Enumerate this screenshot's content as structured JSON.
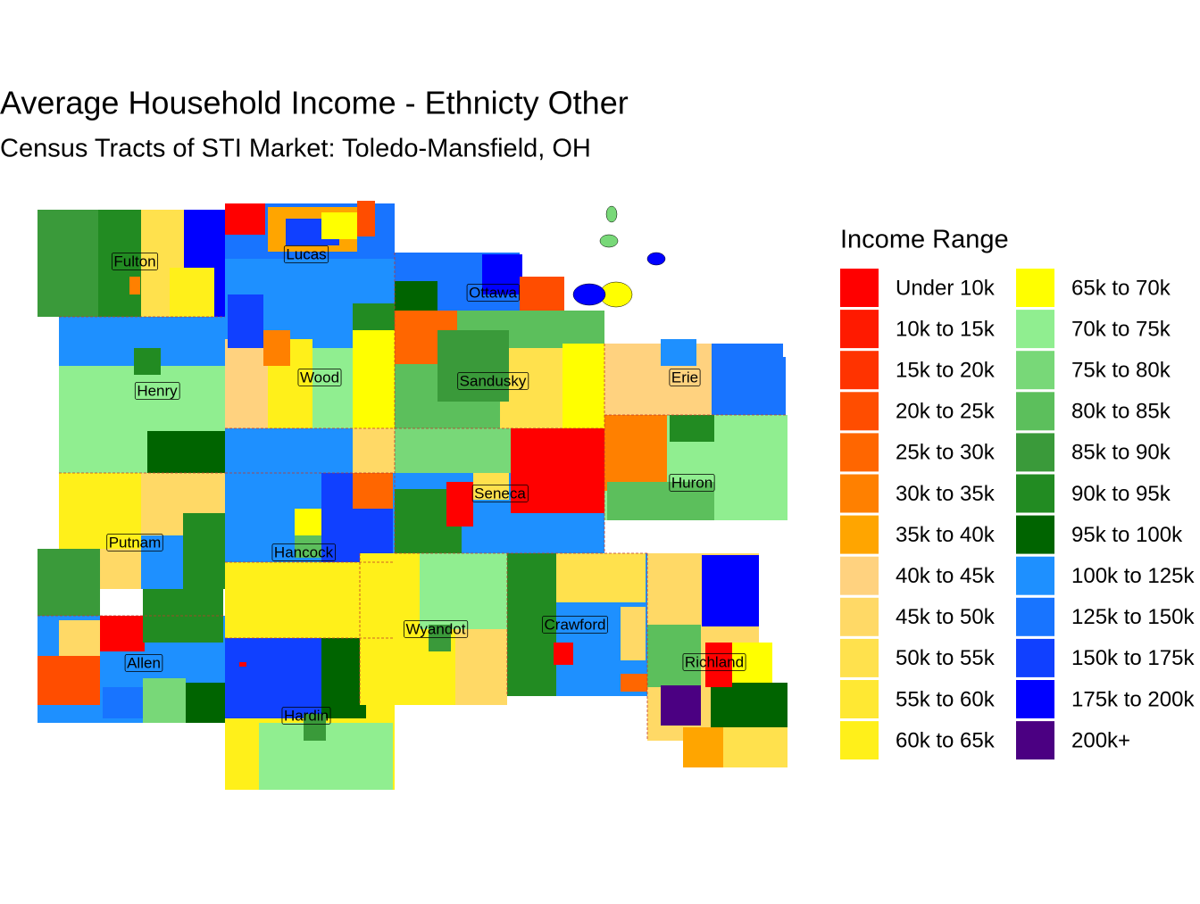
{
  "title": "Average Household Income - Ethnicty Other",
  "subtitle": "Census Tracts of STI Market: Toledo-Mansfield, OH",
  "legend": {
    "title": "Income Range",
    "items": [
      {
        "label": "Under 10k",
        "color": "#FF0000"
      },
      {
        "label": "10k to 15k",
        "color": "#FF1A00"
      },
      {
        "label": "15k to 20k",
        "color": "#FF3300"
      },
      {
        "label": "20k to 25k",
        "color": "#FF4D00"
      },
      {
        "label": "25k to 30k",
        "color": "#FF6600"
      },
      {
        "label": "30k to 35k",
        "color": "#FF8000"
      },
      {
        "label": "35k to 40k",
        "color": "#FFA500"
      },
      {
        "label": "40k to 45k",
        "color": "#FFD27F"
      },
      {
        "label": "45k to 50k",
        "color": "#FFD966"
      },
      {
        "label": "50k to 55k",
        "color": "#FFE14D"
      },
      {
        "label": "55k to 60k",
        "color": "#FFE833"
      },
      {
        "label": "60k to 65k",
        "color": "#FFF01A"
      },
      {
        "label": "65k to 70k",
        "color": "#FFFF00"
      },
      {
        "label": "70k to 75k",
        "color": "#90EE90"
      },
      {
        "label": "75k to 80k",
        "color": "#78D878"
      },
      {
        "label": "80k to 85k",
        "color": "#5CBF5C"
      },
      {
        "label": "85k to 90k",
        "color": "#3A9A3A"
      },
      {
        "label": "90k to 95k",
        "color": "#228B22"
      },
      {
        "label": "95k to 100k",
        "color": "#006400"
      },
      {
        "label": "100k to 125k",
        "color": "#1E90FF"
      },
      {
        "label": "125k to 150k",
        "color": "#1874FF"
      },
      {
        "label": "150k to 175k",
        "color": "#1040FF"
      },
      {
        "label": "175k to 200k",
        "color": "#0000FF"
      },
      {
        "label": "200k+",
        "color": "#4B0082"
      }
    ]
  },
  "counties": [
    "Fulton",
    "Lucas",
    "Ottawa",
    "Henry",
    "Wood",
    "Sandusky",
    "Erie",
    "Huron",
    "Seneca",
    "Putnam",
    "Hancock",
    "Wyandot",
    "Crawford",
    "Allen",
    "Richland",
    "Hardin"
  ]
}
